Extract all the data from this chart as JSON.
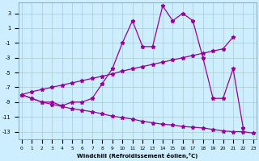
{
  "xlabel": "Windchill (Refroidissement éolien,°C)",
  "background_color": "#cceeff",
  "line_color": "#990099",
  "grid_color": "#aacccc",
  "main_x": [
    0,
    1,
    2,
    3,
    4,
    5,
    6,
    7,
    8,
    9,
    10,
    11,
    12,
    13,
    14,
    15,
    16,
    17,
    18,
    19,
    20,
    21,
    22
  ],
  "main_y": [
    -8.0,
    -8.5,
    -9.0,
    -9.0,
    -9.5,
    -9.0,
    -9.0,
    -8.5,
    -6.5,
    -4.5,
    -1.0,
    2.0,
    -1.5,
    -1.5,
    4.0,
    2.0,
    3.0,
    2.0,
    -3.0,
    -8.5,
    -8.5,
    -4.5,
    -12.5
  ],
  "upper_x": [
    0,
    1,
    2,
    3,
    4,
    5,
    6,
    7,
    8,
    9,
    10,
    11,
    12,
    13,
    14,
    15,
    16,
    17,
    18,
    19,
    20,
    21
  ],
  "upper_y": [
    -8.0,
    -7.6,
    -7.3,
    -7.0,
    -6.7,
    -6.4,
    -6.1,
    -5.8,
    -5.5,
    -5.2,
    -4.8,
    -4.5,
    -4.2,
    -3.9,
    -3.6,
    -3.3,
    -3.0,
    -2.7,
    -2.4,
    -2.1,
    -1.8,
    -0.2
  ],
  "lower_x": [
    0,
    1,
    2,
    3,
    4,
    5,
    6,
    7,
    8,
    9,
    10,
    11,
    12,
    13,
    14,
    15,
    16,
    17,
    18,
    19,
    20,
    21,
    22,
    23
  ],
  "lower_y": [
    -8.0,
    -8.5,
    -9.0,
    -9.3,
    -9.6,
    -9.9,
    -10.1,
    -10.3,
    -10.6,
    -10.9,
    -11.1,
    -11.3,
    -11.6,
    -11.8,
    -12.0,
    -12.1,
    -12.3,
    -12.4,
    -12.5,
    -12.7,
    -12.9,
    -13.0,
    -13.0,
    -13.2
  ],
  "ylim": [
    -14,
    4.5
  ],
  "yticks": [
    3,
    1,
    -1,
    -3,
    -5,
    -7,
    -9,
    -11,
    -13
  ],
  "xlim": [
    -0.3,
    23.3
  ],
  "xticks": [
    0,
    1,
    2,
    3,
    4,
    5,
    6,
    7,
    8,
    9,
    10,
    11,
    12,
    13,
    14,
    15,
    16,
    17,
    18,
    19,
    20,
    21,
    22,
    23
  ]
}
